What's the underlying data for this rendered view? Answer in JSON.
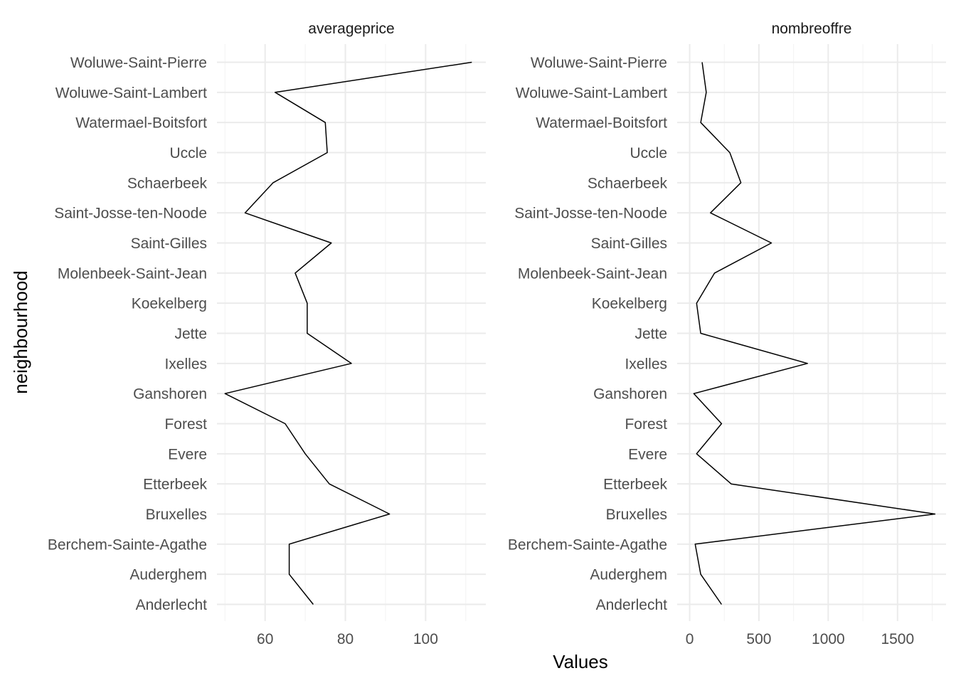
{
  "chart_data": {
    "type": "line",
    "ylabel": "neighbourhood",
    "xlabel": "Values",
    "grid": true,
    "categories": [
      "Anderlecht",
      "Auderghem",
      "Berchem-Sainte-Agathe",
      "Bruxelles",
      "Etterbeek",
      "Evere",
      "Forest",
      "Ganshoren",
      "Ixelles",
      "Jette",
      "Koekelberg",
      "Molenbeek-Saint-Jean",
      "Saint-Gilles",
      "Saint-Josse-ten-Noode",
      "Schaerbeek",
      "Uccle",
      "Watermael-Boitsfort",
      "Woluwe-Saint-Lambert",
      "Woluwe-Saint-Pierre"
    ],
    "facets": [
      {
        "title": "averageprice",
        "xlim": [
          48,
          115
        ],
        "xticks": [
          60,
          80,
          100
        ],
        "xtick_labels": [
          "60",
          "80",
          "100"
        ],
        "values": [
          72,
          66,
          66,
          91,
          76,
          70,
          65,
          50,
          81.5,
          70.5,
          70.5,
          67.5,
          76.5,
          55,
          62,
          75.5,
          75,
          62.5,
          111.5
        ]
      },
      {
        "title": "nombreoffre",
        "xlim": [
          -90,
          1850
        ],
        "xticks": [
          0,
          500,
          1000,
          1500
        ],
        "xtick_labels": [
          "0",
          "500",
          "1000",
          "1500"
        ],
        "values": [
          230,
          80,
          40,
          1770,
          300,
          50,
          230,
          30,
          850,
          80,
          50,
          180,
          590,
          150,
          370,
          290,
          80,
          120,
          90
        ]
      }
    ]
  }
}
